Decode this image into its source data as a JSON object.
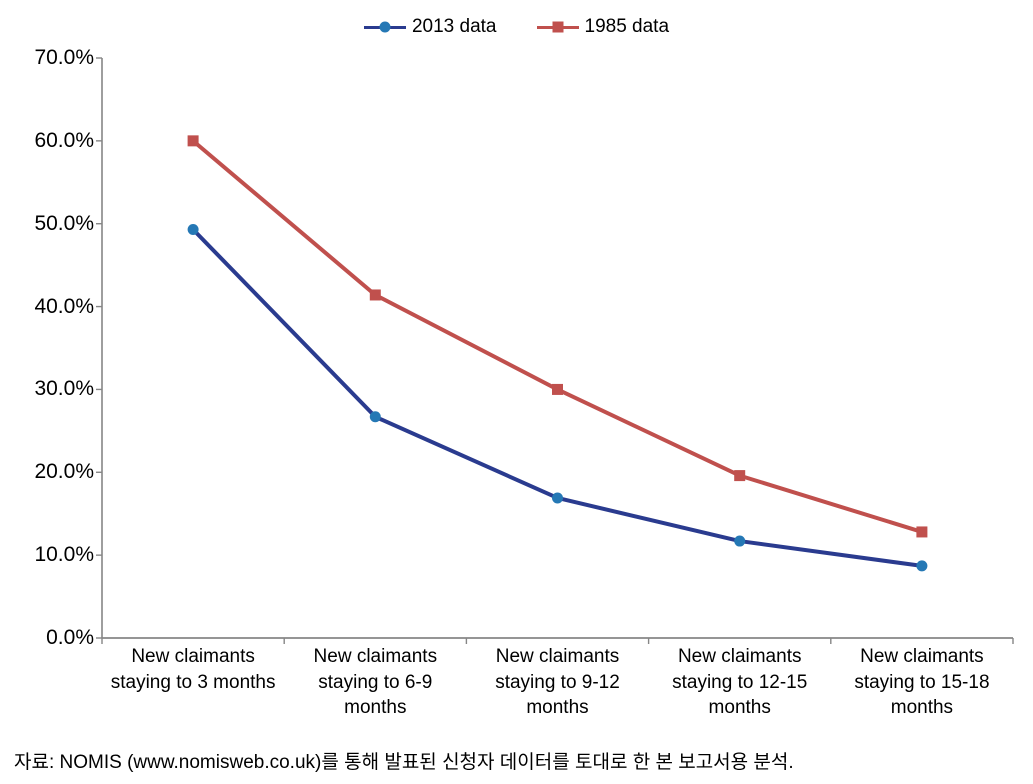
{
  "chart": {
    "type": "line",
    "background_color": "#ffffff",
    "axis_color": "#868686",
    "tick_color": "#868686",
    "text_color": "#000000",
    "title_fontsize": 19,
    "label_fontsize": 21,
    "x_label_fontsize": 19,
    "ylim": [
      0,
      70
    ],
    "ytick_step": 10,
    "y_suffix": "%",
    "y_decimals": 1,
    "categories": [
      "New claimants staying to 3 months",
      "New claimants staying to 6-9 months",
      "New claimants staying to 9-12 months",
      "New claimants staying to 12-15 months",
      "New claimants staying to 15-18 months"
    ],
    "series": [
      {
        "name": "2013 data",
        "color": "#2a3b8f",
        "marker_fill": "#2578b5",
        "marker_shape": "circle",
        "marker_size": 11,
        "line_width": 4,
        "values": [
          49.3,
          26.7,
          16.9,
          11.7,
          8.7
        ]
      },
      {
        "name": "1985 data",
        "color": "#c0504d",
        "marker_fill": "#c0504d",
        "marker_shape": "square",
        "marker_size": 11,
        "line_width": 4,
        "values": [
          60.0,
          41.4,
          30.0,
          19.6,
          12.8
        ]
      }
    ]
  },
  "caption": "자료: NOMIS (www.nomisweb.co.uk)를 통해 발표된 신청자 데이터를 토대로 한 본 보고서용 분석."
}
